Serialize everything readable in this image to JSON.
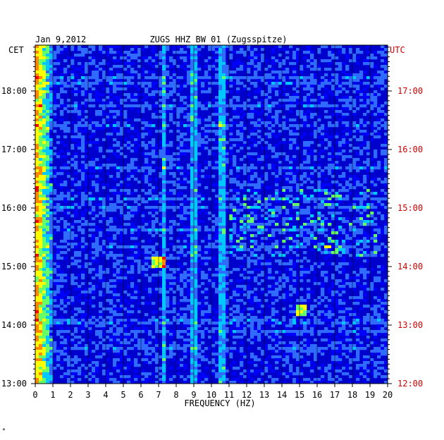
{
  "chart_data": {
    "type": "heatmap",
    "date": "Jan 9,2012",
    "station_title": "ZUGS HHZ BW 01 (Zugsspitze)",
    "left_timezone": "CET",
    "right_timezone": "UTC",
    "xlabel": "FREQUENCY (HZ)",
    "xlim": [
      0,
      20
    ],
    "x_ticks": [
      "0",
      "1",
      "2",
      "3",
      "4",
      "5",
      "6",
      "7",
      "8",
      "9",
      "10",
      "11",
      "12",
      "13",
      "14",
      "15",
      "16",
      "17",
      "18",
      "19",
      "20"
    ],
    "y_ticks_cet": [
      "18:00",
      "17:00",
      "16:00",
      "15:00",
      "14:00",
      "13:00"
    ],
    "y_ticks_utc": [
      "17:00",
      "16:00",
      "15:00",
      "14:00",
      "13:00",
      "12:00"
    ],
    "time_range_cet": [
      "13:00",
      "18:47"
    ],
    "grid": true,
    "colormap": [
      "#00008b",
      "#0000ff",
      "#2f6bff",
      "#00c8ff",
      "#66ff66",
      "#ffff00",
      "#ff8800",
      "#ff0000"
    ],
    "features": [
      {
        "desc": "low-frequency energy",
        "freq": [
          0,
          1
        ],
        "level": "high"
      },
      {
        "desc": "narrow line",
        "freq": 7.3,
        "level": "medium"
      },
      {
        "desc": "narrow line",
        "freq": 9.0,
        "level": "medium"
      },
      {
        "desc": "narrow line",
        "freq": 10.6,
        "level": "medium"
      },
      {
        "desc": "burst",
        "freq": [
          6.5,
          7.5
        ],
        "time_cet": "15:05",
        "level": "high"
      },
      {
        "desc": "burst",
        "freq": [
          14.8,
          15.4
        ],
        "time_cet": "14:15",
        "level": "high"
      }
    ]
  },
  "footer_mark": "*"
}
